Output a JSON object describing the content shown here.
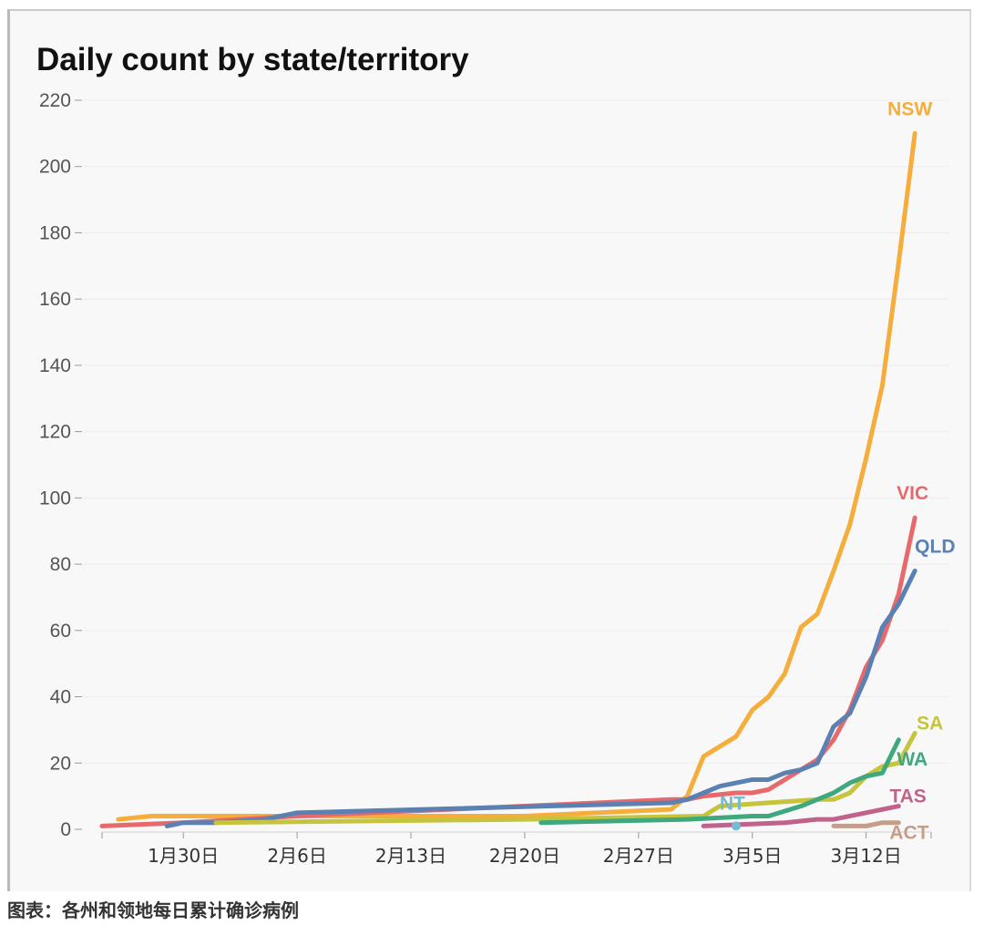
{
  "caption": "图表：各州和领地每日累计确诊病例",
  "chart_data": {
    "type": "line",
    "title": "Daily count by state/territory",
    "xlabel": "",
    "ylabel": "",
    "x_range": [
      "2020-01-25",
      "2020-03-16"
    ],
    "ylim": [
      0,
      220
    ],
    "y_ticks": [
      0,
      20,
      40,
      60,
      80,
      100,
      120,
      140,
      160,
      180,
      200,
      220
    ],
    "x_ticks": [
      {
        "date": "2020-01-30",
        "label": "1月30日"
      },
      {
        "date": "2020-02-06",
        "label": "2月6日"
      },
      {
        "date": "2020-02-13",
        "label": "2月13日"
      },
      {
        "date": "2020-02-20",
        "label": "2月20日"
      },
      {
        "date": "2020-02-27",
        "label": "2月27日"
      },
      {
        "date": "2020-03-05",
        "label": "3月5日"
      },
      {
        "date": "2020-03-12",
        "label": "3月12日"
      }
    ],
    "grid": true,
    "legend": "labels at line ends",
    "series": [
      {
        "name": "NSW",
        "color": "#f5ad3c",
        "points": [
          [
            "2020-01-26",
            3
          ],
          [
            "2020-01-28",
            4
          ],
          [
            "2020-02-01",
            4
          ],
          [
            "2020-02-06",
            4
          ],
          [
            "2020-02-20",
            4
          ],
          [
            "2020-02-29",
            6
          ],
          [
            "2020-03-01",
            10
          ],
          [
            "2020-03-02",
            22
          ],
          [
            "2020-03-04",
            28
          ],
          [
            "2020-03-05",
            36
          ],
          [
            "2020-03-06",
            40
          ],
          [
            "2020-03-07",
            47
          ],
          [
            "2020-03-08",
            61
          ],
          [
            "2020-03-09",
            65
          ],
          [
            "2020-03-10",
            78
          ],
          [
            "2020-03-11",
            92
          ],
          [
            "2020-03-12",
            112
          ],
          [
            "2020-03-13",
            134
          ],
          [
            "2020-03-14",
            171
          ],
          [
            "2020-03-15",
            210
          ]
        ]
      },
      {
        "name": "VIC",
        "color": "#e8696b",
        "points": [
          [
            "2020-01-25",
            1
          ],
          [
            "2020-01-30",
            2
          ],
          [
            "2020-02-06",
            4
          ],
          [
            "2020-02-20",
            7
          ],
          [
            "2020-02-29",
            9
          ],
          [
            "2020-03-01",
            9
          ],
          [
            "2020-03-02",
            10
          ],
          [
            "2020-03-04",
            11
          ],
          [
            "2020-03-05",
            11
          ],
          [
            "2020-03-06",
            12
          ],
          [
            "2020-03-07",
            15
          ],
          [
            "2020-03-08",
            18
          ],
          [
            "2020-03-09",
            21
          ],
          [
            "2020-03-10",
            27
          ],
          [
            "2020-03-11",
            36
          ],
          [
            "2020-03-12",
            49
          ],
          [
            "2020-03-13",
            57
          ],
          [
            "2020-03-14",
            71
          ],
          [
            "2020-03-15",
            94
          ]
        ]
      },
      {
        "name": "QLD",
        "color": "#5b80b2",
        "points": [
          [
            "2020-01-29",
            1
          ],
          [
            "2020-01-30",
            2
          ],
          [
            "2020-02-01",
            2
          ],
          [
            "2020-02-04",
            3
          ],
          [
            "2020-02-06",
            5
          ],
          [
            "2020-02-29",
            8
          ],
          [
            "2020-03-01",
            9
          ],
          [
            "2020-03-02",
            11
          ],
          [
            "2020-03-03",
            13
          ],
          [
            "2020-03-04",
            14
          ],
          [
            "2020-03-05",
            15
          ],
          [
            "2020-03-06",
            15
          ],
          [
            "2020-03-07",
            17
          ],
          [
            "2020-03-08",
            18
          ],
          [
            "2020-03-09",
            20
          ],
          [
            "2020-03-10",
            31
          ],
          [
            "2020-03-11",
            35
          ],
          [
            "2020-03-12",
            46
          ],
          [
            "2020-03-13",
            61
          ],
          [
            "2020-03-14",
            68
          ],
          [
            "2020-03-15",
            78
          ]
        ]
      },
      {
        "name": "SA",
        "color": "#c5c43c",
        "points": [
          [
            "2020-02-01",
            2
          ],
          [
            "2020-02-20",
            3
          ],
          [
            "2020-03-02",
            4
          ],
          [
            "2020-03-03",
            7
          ],
          [
            "2020-03-09",
            9
          ],
          [
            "2020-03-10",
            9
          ],
          [
            "2020-03-11",
            11
          ],
          [
            "2020-03-12",
            16
          ],
          [
            "2020-03-13",
            19
          ],
          [
            "2020-03-14",
            20
          ],
          [
            "2020-03-15",
            29
          ]
        ]
      },
      {
        "name": "WA",
        "color": "#3fa87e",
        "points": [
          [
            "2020-02-21",
            2
          ],
          [
            "2020-03-01",
            3
          ],
          [
            "2020-03-05",
            4
          ],
          [
            "2020-03-06",
            4
          ],
          [
            "2020-03-08",
            7
          ],
          [
            "2020-03-09",
            9
          ],
          [
            "2020-03-10",
            11
          ],
          [
            "2020-03-11",
            14
          ],
          [
            "2020-03-12",
            16
          ],
          [
            "2020-03-13",
            17
          ],
          [
            "2020-03-14",
            27
          ]
        ]
      },
      {
        "name": "TAS",
        "color": "#c0628b",
        "points": [
          [
            "2020-03-02",
            1
          ],
          [
            "2020-03-07",
            2
          ],
          [
            "2020-03-09",
            3
          ],
          [
            "2020-03-10",
            3
          ],
          [
            "2020-03-11",
            4
          ],
          [
            "2020-03-12",
            5
          ],
          [
            "2020-03-13",
            6
          ],
          [
            "2020-03-14",
            7
          ]
        ]
      },
      {
        "name": "ACT",
        "color": "#c49e8a",
        "points": [
          [
            "2020-03-10",
            1
          ],
          [
            "2020-03-11",
            1
          ],
          [
            "2020-03-12",
            1
          ],
          [
            "2020-03-13",
            2
          ],
          [
            "2020-03-14",
            2
          ]
        ]
      },
      {
        "name": "NT",
        "color": "#72bcd4",
        "points": [
          [
            "2020-03-04",
            1
          ]
        ]
      }
    ]
  }
}
